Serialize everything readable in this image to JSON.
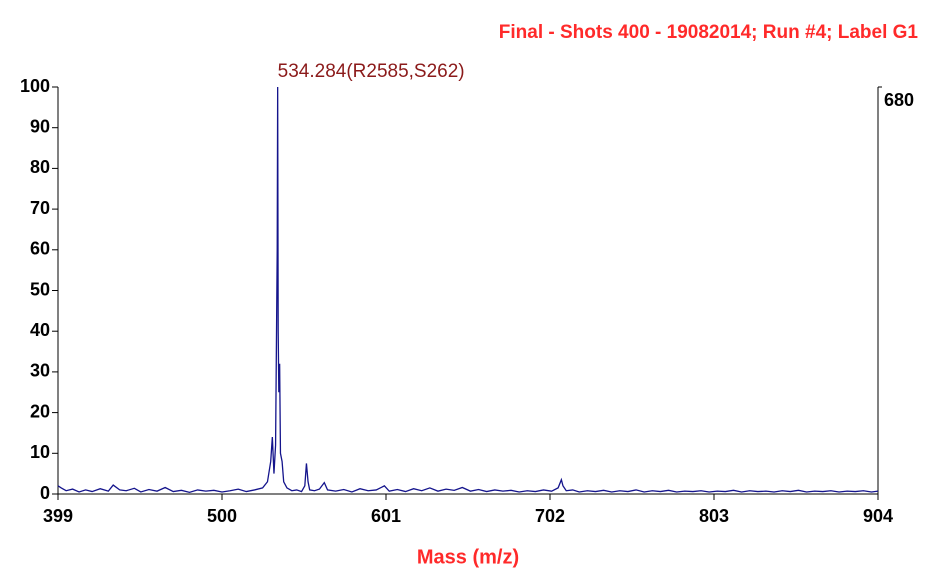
{
  "chart_data": {
    "type": "line",
    "title": "Final - Shots 400 - 19082014; Run #4; Label G1",
    "x_label": "Mass (m/z)",
    "xlim": [
      399,
      904
    ],
    "xticks": [
      399,
      500,
      601,
      702,
      803,
      904
    ],
    "ylim": [
      0,
      100
    ],
    "yticks": [
      0,
      10,
      20,
      30,
      40,
      50,
      60,
      70,
      80,
      90,
      100
    ],
    "y2lim": [
      0,
      680
    ],
    "y2ticks": [
      680
    ],
    "annotations": [
      {
        "text": "534.284(R2585,S262)",
        "x": 534.284
      }
    ],
    "series": [
      {
        "color": "#14148c",
        "x": [
          399,
          401,
          404,
          408,
          412,
          416,
          420,
          425,
          430,
          433,
          437,
          441,
          446,
          450,
          455,
          460,
          465,
          470,
          475,
          480,
          485,
          490,
          495,
          500,
          505,
          510,
          515,
          520,
          525,
          528,
          530,
          531,
          532,
          533,
          534,
          534.284,
          534.6,
          535,
          535.5,
          536,
          537,
          538,
          540,
          543,
          546,
          549,
          551,
          552,
          553,
          554,
          557,
          560,
          563,
          565,
          570,
          575,
          580,
          585,
          590,
          595,
          600,
          603,
          608,
          613,
          618,
          623,
          628,
          633,
          638,
          643,
          648,
          653,
          658,
          663,
          668,
          673,
          678,
          683,
          688,
          693,
          698,
          703,
          707,
          709,
          710,
          712,
          716,
          720,
          725,
          730,
          735,
          740,
          745,
          750,
          755,
          760,
          765,
          770,
          775,
          780,
          785,
          790,
          795,
          800,
          805,
          810,
          815,
          820,
          825,
          830,
          835,
          840,
          845,
          850,
          855,
          860,
          865,
          870,
          875,
          880,
          885,
          890,
          895,
          900,
          904
        ],
        "values": [
          2,
          1.5,
          0.8,
          1.2,
          0.5,
          1.0,
          0.6,
          1.3,
          0.7,
          2.2,
          1.0,
          0.8,
          1.4,
          0.5,
          1.1,
          0.7,
          1.6,
          0.6,
          0.9,
          0.4,
          1.0,
          0.7,
          0.9,
          0.5,
          0.8,
          1.2,
          0.6,
          1.0,
          1.5,
          3,
          8,
          14,
          5,
          12,
          60,
          100,
          40,
          25,
          32,
          10,
          8,
          3,
          1.5,
          0.8,
          1.0,
          0.6,
          2,
          7.5,
          3,
          1,
          0.8,
          1.2,
          2.8,
          1.0,
          0.7,
          1.1,
          0.5,
          1.3,
          0.8,
          1.0,
          2.0,
          0.7,
          1.1,
          0.6,
          1.3,
          0.8,
          1.5,
          0.7,
          1.2,
          0.9,
          1.6,
          0.7,
          1.1,
          0.6,
          1.0,
          0.7,
          0.9,
          0.5,
          0.8,
          0.6,
          1.0,
          0.7,
          1.5,
          3.5,
          2,
          0.8,
          1.0,
          0.5,
          0.8,
          0.6,
          0.9,
          0.5,
          0.8,
          0.6,
          1.0,
          0.5,
          0.8,
          0.6,
          0.9,
          0.5,
          0.7,
          0.6,
          0.8,
          0.5,
          0.7,
          0.6,
          0.9,
          0.5,
          0.8,
          0.6,
          0.7,
          0.5,
          0.8,
          0.6,
          0.9,
          0.5,
          0.7,
          0.6,
          0.8,
          0.5,
          0.7,
          0.6,
          0.8,
          0.5,
          0.7
        ]
      }
    ]
  }
}
